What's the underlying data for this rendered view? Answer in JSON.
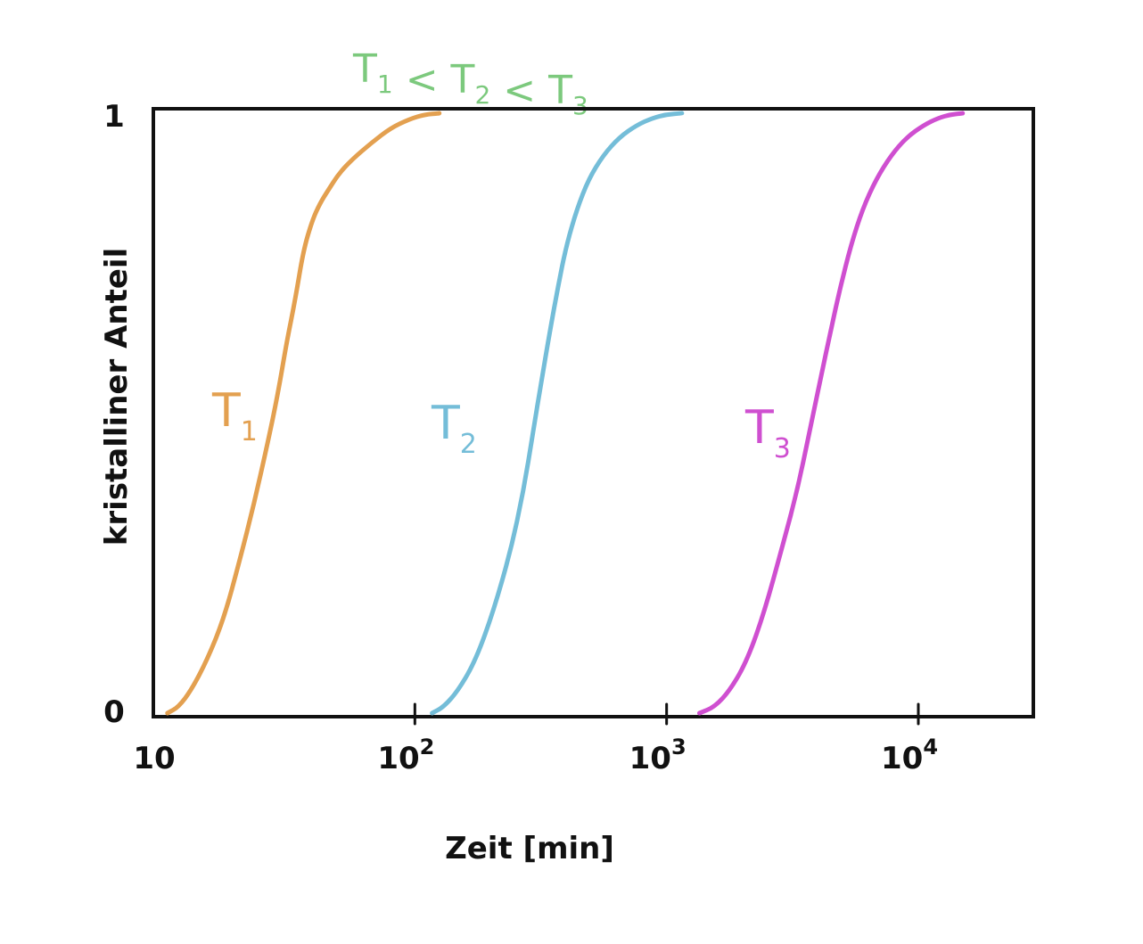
{
  "chart_data": {
    "type": "line",
    "title": "",
    "annotation": {
      "parts": [
        {
          "main": "T",
          "sub": "1"
        },
        {
          "main": " < T",
          "sub": "2"
        },
        {
          "main": " < T",
          "sub": "3"
        }
      ],
      "color": "#7cc97d"
    },
    "xlabel": "Zeit [min]",
    "ylabel": "kristalliner Anteil",
    "x_scale": "log",
    "xlim": [
      10,
      25000
    ],
    "ylim": [
      0,
      1
    ],
    "x_ticks": [
      {
        "value": 10,
        "base": "10",
        "exp": ""
      },
      {
        "value": 100,
        "base": "10",
        "exp": "2"
      },
      {
        "value": 1000,
        "base": "10",
        "exp": "3"
      },
      {
        "value": 10000,
        "base": "10",
        "exp": "4"
      }
    ],
    "y_ticks": [
      {
        "value": 0,
        "label": "0"
      },
      {
        "value": 1,
        "label": "1"
      }
    ],
    "grid": false,
    "legend": "none",
    "series": [
      {
        "name": "T1",
        "label_main": "T",
        "label_sub": "1",
        "color": "#e3a050",
        "x": [
          10.4,
          11.5,
          13,
          15,
          17.5,
          20,
          23,
          26,
          28.5,
          31,
          33.5,
          36,
          39,
          42,
          45,
          50,
          57,
          67,
          80,
          95,
          110,
          125
        ],
        "y": [
          0,
          0.01,
          0.04,
          0.09,
          0.16,
          0.25,
          0.35,
          0.45,
          0.53,
          0.62,
          0.69,
          0.77,
          0.82,
          0.85,
          0.87,
          0.9,
          0.925,
          0.95,
          0.975,
          0.99,
          0.998,
          1.0
        ]
      },
      {
        "name": "T2",
        "label_main": "T",
        "label_sub": "2",
        "color": "#74bdd8",
        "x": [
          117,
          130,
          150,
          175,
          205,
          240,
          270,
          295,
          320,
          345,
          370,
          400,
          440,
          490,
          560,
          650,
          760,
          880,
          1000,
          1150
        ],
        "y": [
          0,
          0.01,
          0.04,
          0.09,
          0.17,
          0.27,
          0.37,
          0.47,
          0.56,
          0.64,
          0.71,
          0.78,
          0.84,
          0.89,
          0.93,
          0.96,
          0.98,
          0.992,
          0.998,
          1.0
        ]
      },
      {
        "name": "T3",
        "label_main": "T",
        "label_sub": "3",
        "color": "#cf4fd0",
        "x": [
          1350,
          1550,
          1800,
          2100,
          2450,
          2850,
          3300,
          3700,
          4100,
          4500,
          4900,
          5400,
          6000,
          6800,
          7800,
          9000,
          10500,
          12000,
          13500,
          15000
        ],
        "y": [
          0,
          0.01,
          0.04,
          0.09,
          0.17,
          0.27,
          0.37,
          0.47,
          0.56,
          0.64,
          0.71,
          0.78,
          0.84,
          0.89,
          0.93,
          0.96,
          0.98,
          0.992,
          0.998,
          1.0
        ]
      }
    ]
  }
}
